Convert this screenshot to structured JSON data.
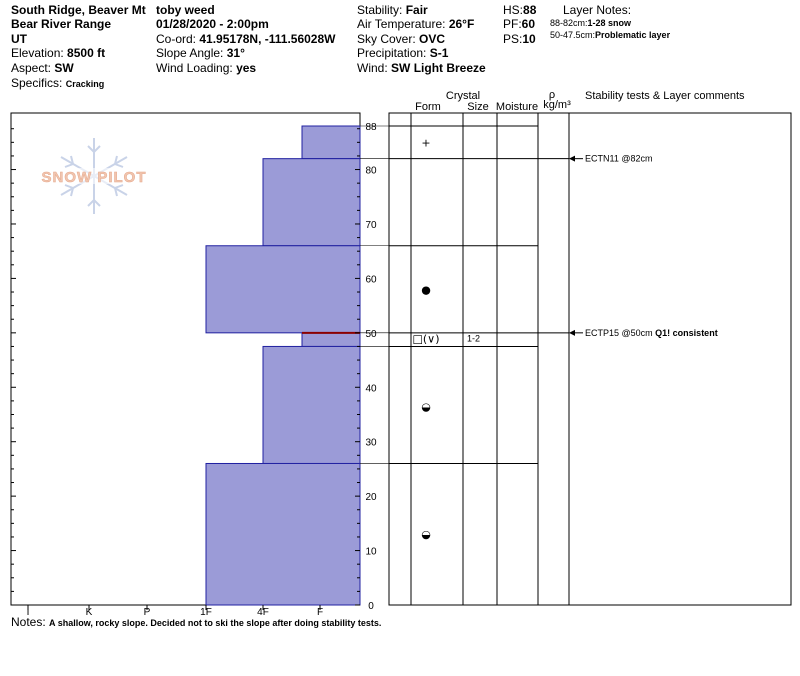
{
  "header": {
    "location": "South Ridge, Beaver Mt",
    "range": "Bear River Range",
    "state": "UT",
    "elevation_label": "Elevation:",
    "elevation": "8500 ft",
    "aspect_label": "Aspect:",
    "aspect": "SW",
    "specifics_label": "Specifics:",
    "specifics": "Cracking",
    "observer": "toby weed",
    "datetime": "01/28/2020 - 2:00pm",
    "coord_label": "Co-ord:",
    "coord": "41.95178N, -111.56028W",
    "slope_label": "Slope Angle:",
    "slope": "31°",
    "wind_loading_label": "Wind Loading:",
    "wind_loading": "yes",
    "stability_label": "Stability:",
    "stability": "Fair",
    "air_temp_label": "Air Temperature:",
    "air_temp": "26°F",
    "sky_label": "Sky Cover:",
    "sky": "OVC",
    "precip_label": "Precipitation:",
    "precip": "S-1",
    "wind_label": "Wind:",
    "wind": "SW Light Breeze",
    "hs_label": "HS:",
    "hs": "88",
    "pf_label": "PF:",
    "pf": "60",
    "ps_label": "PS:",
    "ps": "10",
    "layer_notes_title": "Layer Notes:",
    "layer_notes": [
      {
        "range": "88-82cm:",
        "text": "1-28 snow"
      },
      {
        "range": "50-47.5cm:",
        "text": "Problematic layer"
      }
    ]
  },
  "columns": {
    "crystal": "Crystal",
    "form": "Form",
    "size": "Size",
    "moisture": "Moisture",
    "density_symbol": "ρ",
    "density_unit": "kg/m³",
    "stability": "Stability tests & Layer comments"
  },
  "logo": "SNOW PILOT",
  "notes_label": "Notes:",
  "notes": "A shallow, rocky slope.  Decided not to ski the slope after doing stability tests.",
  "colors": {
    "layer_fill": "#9b9bd7",
    "layer_stroke": "#2020a0",
    "weak_layer": "#8b0000",
    "logo": "#c9d3e8"
  },
  "chart_data": {
    "type": "snow_profile",
    "y_axis": {
      "label": "",
      "range": [
        0,
        88
      ],
      "ticks": [
        0,
        10,
        20,
        30,
        40,
        50,
        60,
        70,
        80,
        88
      ]
    },
    "hardness_axis": {
      "categories": [
        "I",
        "K",
        "P",
        "1F",
        "4F",
        "F"
      ]
    },
    "hardness_layers": [
      {
        "top": 88,
        "bottom": 82,
        "hardness": "4F+"
      },
      {
        "top": 82,
        "bottom": 66,
        "hardness": "4F"
      },
      {
        "top": 66,
        "bottom": 50,
        "hardness": "1F"
      },
      {
        "top": 50,
        "bottom": 47.5,
        "hardness": "4F+"
      },
      {
        "top": 47.5,
        "bottom": 26,
        "hardness": "4F"
      },
      {
        "top": 26,
        "bottom": 0,
        "hardness": "1F"
      }
    ],
    "weak_layer_depth": 50,
    "boundaries": [
      88,
      82,
      66,
      50,
      47.5,
      26
    ],
    "grain_symbols": [
      {
        "depth": 85,
        "symbol": "+"
      },
      {
        "depth": 58,
        "symbol": "●"
      },
      {
        "depth": 49,
        "symbol": "□(∨)",
        "size": "1-2"
      },
      {
        "depth": 36.5,
        "symbol": "◒"
      },
      {
        "depth": 13,
        "symbol": "◒"
      }
    ],
    "stability_tests": [
      {
        "depth": 82,
        "label": "ECTN11 @82cm",
        "extra": ""
      },
      {
        "depth": 50,
        "label": "ECTP15 @50cm",
        "extra": "Q1! consistent"
      }
    ]
  }
}
